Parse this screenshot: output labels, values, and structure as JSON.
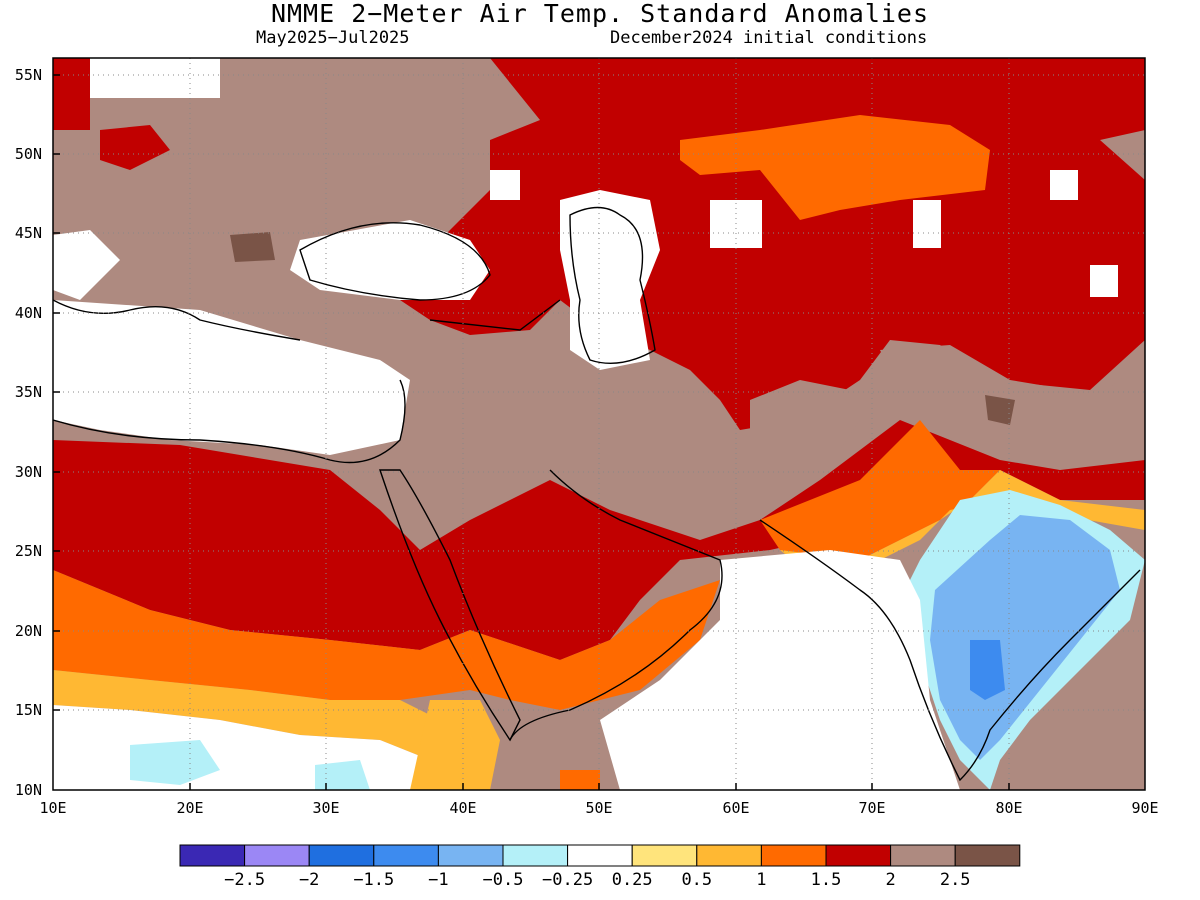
{
  "title": "NMME 2−Meter Air Temp. Standard Anomalies",
  "subtitle_left": "May2025−Jul2025",
  "subtitle_right": "December2024 initial conditions",
  "map": {
    "lat_labels": [
      "55N",
      "50N",
      "45N",
      "40N",
      "35N",
      "30N",
      "25N",
      "20N",
      "15N",
      "10N"
    ],
    "lon_labels": [
      "10E",
      "20E",
      "30E",
      "40E",
      "50E",
      "60E",
      "70E",
      "80E",
      "90E"
    ],
    "lat_range": [
      10,
      56
    ],
    "lon_range": [
      10,
      90
    ],
    "gridlines": "dotted"
  },
  "colorbar": {
    "colors": [
      "#3a28b4",
      "#9b87f5",
      "#1f6fe0",
      "#3d8bef",
      "#78b4f2",
      "#b4f0f8",
      "#ffffff",
      "#ffe47c",
      "#ffb833",
      "#ff6a00",
      "#c10000",
      "#ae8a80",
      "#7a5447"
    ],
    "labels": [
      "−2.5",
      "−2",
      "−1.5",
      "−1",
      "−0.5",
      "−0.25",
      "0.25",
      "0.5",
      "1",
      "1.5",
      "2",
      "2.5"
    ]
  }
}
